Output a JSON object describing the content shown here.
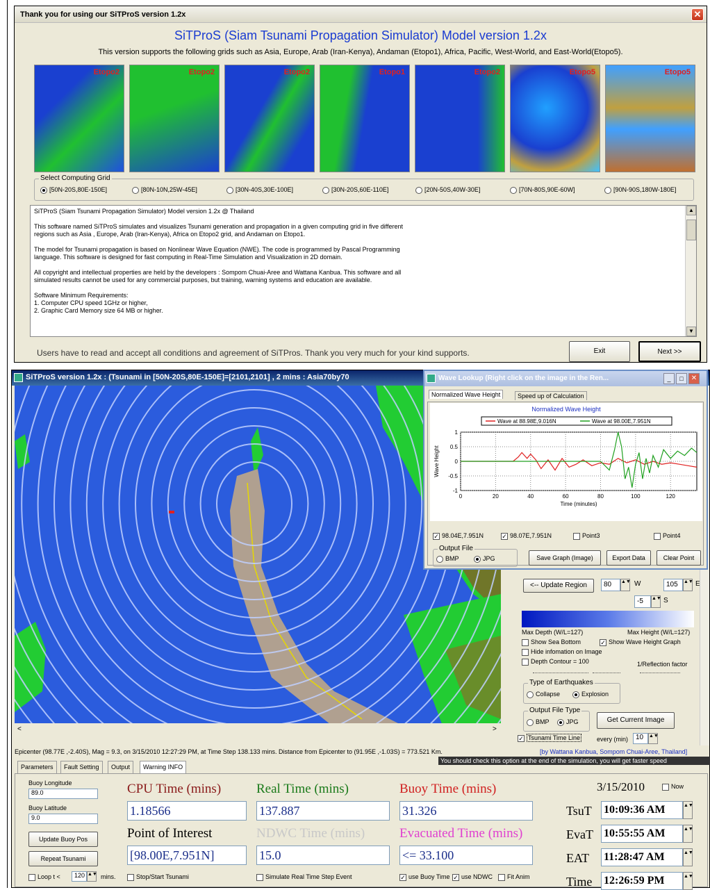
{
  "welcome": {
    "title": "Thank you for using our SiTProS version 1.2x",
    "heading": "SiTProS (Siam Tsunami Propagation Simulator) Model version 1.2x",
    "subheading": "This version supports the following grids such as Asia, Europe, Arab (Iran-Kenya), Andaman (Etopo1), Africa, Pacific, West-World, and East-World(Etopo5).",
    "thumbs": [
      "Etopo2",
      "Etopo2",
      "Etopo2",
      "Etopo1",
      "Etopo2",
      "Etopo5",
      "Etopo5"
    ],
    "grid_group_label": "Select Computing Grid",
    "grids": [
      "[50N-20S,80E-150E]",
      "[80N-10N,25W-45E]",
      "[30N-40S,30E-100E]",
      "[30N-20S,60E-110E]",
      "[20N-50S,40W-30E]",
      "[70N-80S,90E-60W]",
      "[90N-90S,180W-180E]"
    ],
    "memo": [
      "SiTProS (Siam Tsunami Propagation Simulator) Model version 1.2x @ Thailand",
      "This software named SiTProS simulates and visualizes Tsunami generation and propagation in a given computing grid in five different\nregions such as Asia , Europe, Arab (Iran-Kenya), Africa on Etopo2 grid, and Andaman on Etopo1.",
      "The model for Tsunami propagation is based on Nonlinear Wave Equation (NWE). The code is programmed by Pascal Programming\nlanguage. This software is designed for fast computing in Real-Time Simulation and Visualization in 2D domain.",
      "All copyright and intellectual properties are held by the developers :  Sompom Chuai-Aree and Wattana Kanbua. This software and all\nsimulated results cannot be used for any commercial purposes, but training, warning systems and education are available.",
      "Software Minimum Requirements:\n1. Computer CPU speed 1GHz or higher,\n2. Graphic Card Memory size 64 MB or higher."
    ],
    "footer_text": "Users have to read and accept all conditions and agreement of SiTPros. Thank you very much for your kind supports.",
    "exit_label": "Exit",
    "next_label": "Next >>"
  },
  "main": {
    "title": "SiTProS version 1.2x : (Tsunami in [50N-20S,80E-150E]=[2101,2101] , 2 mins : Asia70by70",
    "status": "Epicenter (98.77E ,-2.40S), Mag = 9.3, on 3/15/2010 12:27:29 PM, at Time Step 138.133 mins.  Distance from Epicenter to (91.95E ,-1.03S)  = 773.521 Km.",
    "credits": "[by Wattana Kanbua, Sompom Chuai-Aree, Thailand]",
    "hint": "You should check this option at the end of the simulation, you will get faster speed",
    "tabs": [
      "Parameters",
      "Fault Setting",
      "Output",
      "Warning INFO"
    ]
  },
  "lookup": {
    "title": "Wave Lookup (Right click on the image in the Ren...",
    "tabs": [
      "Normalized Wave Height",
      "Speed up of Calculation"
    ],
    "chart_title": "Normalized Wave Height",
    "legend": [
      "Wave at 88.98E,9.016N",
      "Wave at 98.00E,7.951N"
    ],
    "points": [
      "98.04E,7.951N",
      "98.07E,7.951N",
      "Point3",
      "Point4"
    ],
    "output_label": "Output File",
    "bmp": "BMP",
    "jpg": "JPG",
    "save_label": "Save Graph (Image)",
    "export_label": "Export Data",
    "clear_label": "Clear Point"
  },
  "chart_data": {
    "type": "line",
    "title": "Normalized Wave Height",
    "xlabel": "Time (minutes)",
    "ylabel": "Wave Height",
    "xlim": [
      0,
      135
    ],
    "ylim": [
      -1,
      1
    ],
    "xticks": [
      0,
      20,
      40,
      60,
      80,
      100,
      120
    ],
    "yticks": [
      1,
      0.5,
      0,
      -0.5,
      -1
    ],
    "series": [
      {
        "name": "Wave at 88.98E,9.016N",
        "color": "#e02020",
        "x": [
          0,
          30,
          33,
          35,
          38,
          40,
          43,
          46,
          50,
          54,
          58,
          62,
          66,
          70,
          75,
          80,
          85,
          90,
          95,
          100,
          105,
          110,
          115,
          120,
          125,
          130,
          135
        ],
        "y": [
          0,
          0,
          0.15,
          0.3,
          0.1,
          0.25,
          0.05,
          -0.25,
          0.05,
          -0.3,
          0.1,
          -0.2,
          -0.1,
          0.05,
          -0.15,
          -0.05,
          -0.1,
          0.1,
          -0.05,
          0.05,
          -0.1,
          0,
          -0.1,
          -0.05,
          -0.1,
          -0.15,
          -0.2
        ]
      },
      {
        "name": "Wave at 98.00E,7.951N",
        "color": "#20a020",
        "x": [
          0,
          80,
          85,
          88,
          90,
          92,
          94,
          96,
          98,
          100,
          102,
          104,
          106,
          108,
          110,
          113,
          116,
          120,
          124,
          128,
          132,
          135
        ],
        "y": [
          0,
          0,
          -0.3,
          0.4,
          1.0,
          0.5,
          -0.6,
          -0.2,
          -0.9,
          -0.1,
          0.3,
          -0.6,
          0.1,
          -0.4,
          0.2,
          -0.2,
          0.4,
          0.1,
          0.35,
          0.2,
          0.45,
          0.3
        ]
      }
    ]
  },
  "panel": {
    "update_label": "<-- Update Region",
    "w_value": "80",
    "w_label": "W",
    "e_value": "105",
    "e_label": "E",
    "s_value": "-5",
    "s_label": "S",
    "max_depth": "Max Depth (W/L=127)",
    "max_height": "Max Height (W/L=127)",
    "show_sea": "Show Sea Bottom",
    "show_wave": "Show Wave Height Graph",
    "hide_info": "Hide infomation on Image",
    "depth_contour": "Depth Contour = 100",
    "reflection": "1/Reflection factor",
    "eq_label": "Type of Earthquakes",
    "collapse": "Collapse",
    "explosion": "Explosion",
    "out_type": "Output File Type",
    "bmp": "BMP",
    "jpg": "JPG",
    "get_image": "Get Current Image",
    "tsunami_line": "Tsunami Time Line",
    "every": "every (min)",
    "every_value": "10"
  },
  "warning": {
    "buoy_lon_label": "Buoy Longitude",
    "buoy_lon": "89.0",
    "buoy_lat_label": "Buoy Latitude",
    "buoy_lat": "9.0",
    "update_buoy": "Update Buoy Pos",
    "repeat": "Repeat Tsunami",
    "loop_label": "Loop t <",
    "loop_value": "120",
    "loop_unit": "mins.",
    "cpu_label": "CPU Time (mins)",
    "cpu": "1.18566",
    "real_label": "Real Time (mins)",
    "real": "137.887",
    "buoy_label": "Buoy Time (mins)",
    "buoy": "31.326",
    "poi_label": "Point of Interest",
    "poi": "[98.00E,7.951N]",
    "ndwc_label": "NDWC Time (mins)",
    "ndwc": "15.0",
    "evac_label": "Evacuated Time (mins)",
    "evac": "<= 33.100",
    "stop": "Stop/Start Tsunami",
    "simulate": "Simulate Real Time Step Event",
    "use_buoy": "use Buoy Time",
    "use_ndwc": "use NDWC",
    "fit": "Fit Anim",
    "date": "3/15/2010",
    "now": "Now",
    "tsut_label": "TsuT",
    "tsut": "10:09:36 AM",
    "evat_label": "EvaT",
    "evat": "10:55:55 AM",
    "eat_label": "EAT",
    "eat": "11:28:47 AM",
    "time_label": "Time",
    "time": "12:26:59 PM"
  }
}
